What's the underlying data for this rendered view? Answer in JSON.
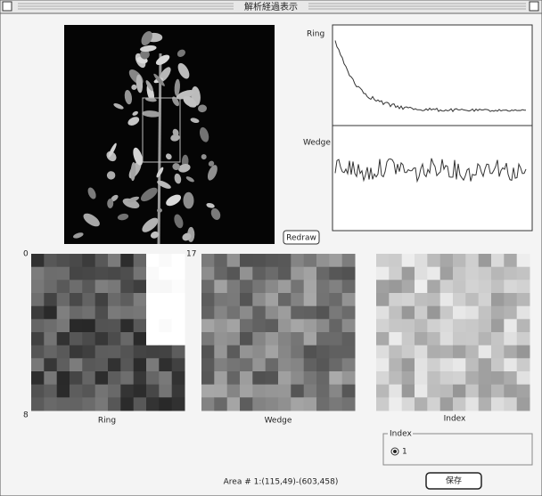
{
  "window": {
    "title": "解析経過表示"
  },
  "graphs": {
    "ring_label": "Ring",
    "wedge_label": "Wedge",
    "redraw_button": "Redraw"
  },
  "grids": {
    "top_left_label": "0",
    "top_middle_label": "17",
    "bottom_left_label": "8",
    "captions": [
      "Ring",
      "Wedge",
      "Index"
    ]
  },
  "index_group": {
    "title": "Index",
    "option": "1"
  },
  "status": {
    "area": "Area # 1:(115,49)-(603,458)"
  },
  "save_button": "保存"
}
